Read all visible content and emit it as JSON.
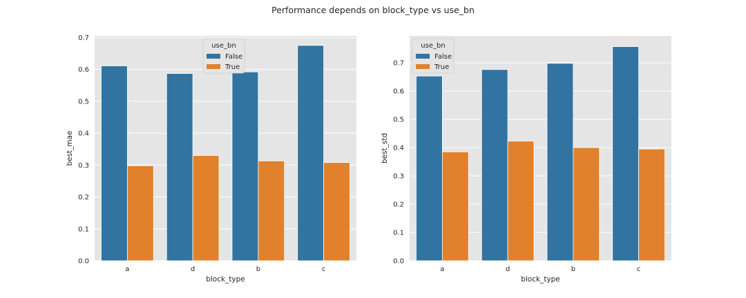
{
  "figure": {
    "title": "Performance depends on block_type vs use_bn"
  },
  "colors": {
    "panel_background": "#e5e5e5",
    "grid": "#ffffff",
    "series": [
      "#3274a1",
      "#e1812c"
    ]
  },
  "chart_data": [
    {
      "type": "bar",
      "title": "",
      "xlabel": "block_type",
      "ylabel": "best_mae",
      "categories": [
        "a",
        "d",
        "b",
        "c"
      ],
      "series": [
        {
          "name": "False",
          "values": [
            0.611,
            0.587,
            0.592,
            0.675
          ]
        },
        {
          "name": "True",
          "values": [
            0.298,
            0.33,
            0.313,
            0.308
          ]
        }
      ],
      "ylim": [
        0,
        0.705
      ],
      "yticks": [
        0.0,
        0.1,
        0.2,
        0.3,
        0.4,
        0.5,
        0.6,
        0.7
      ],
      "ytick_labels": [
        "0.0",
        "0.1",
        "0.2",
        "0.3",
        "0.4",
        "0.5",
        "0.6",
        "0.7"
      ],
      "legend": {
        "title": "use_bn",
        "entries": [
          "False",
          "True"
        ],
        "position": "top-center"
      },
      "grid": true
    },
    {
      "type": "bar",
      "title": "",
      "xlabel": "block_type",
      "ylabel": "best_std",
      "categories": [
        "a",
        "d",
        "b",
        "c"
      ],
      "series": [
        {
          "name": "False",
          "values": [
            0.653,
            0.676,
            0.698,
            0.757
          ]
        },
        {
          "name": "True",
          "values": [
            0.385,
            0.423,
            0.4,
            0.395
          ]
        }
      ],
      "ylim": [
        0,
        0.795
      ],
      "yticks": [
        0.0,
        0.1,
        0.2,
        0.3,
        0.4,
        0.5,
        0.6,
        0.7
      ],
      "ytick_labels": [
        "0.0",
        "0.1",
        "0.2",
        "0.3",
        "0.4",
        "0.5",
        "0.6",
        "0.7"
      ],
      "legend": {
        "title": "use_bn",
        "entries": [
          "False",
          "True"
        ],
        "position": "top-left"
      },
      "grid": true
    }
  ]
}
